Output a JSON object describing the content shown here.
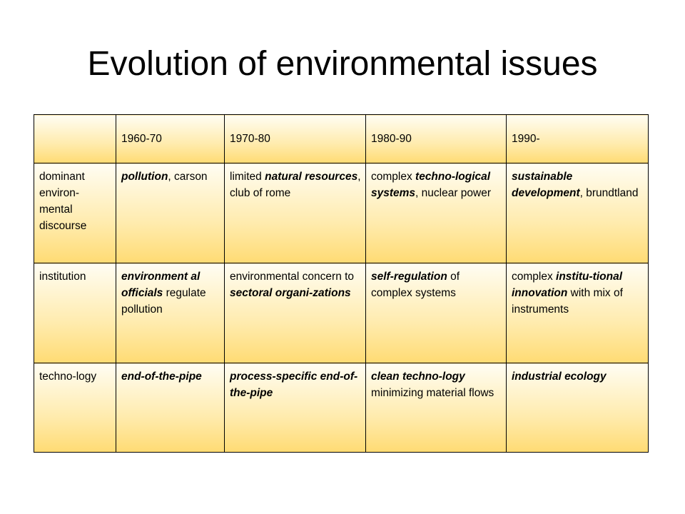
{
  "slide": {
    "title": "Evolution of environmental issues"
  },
  "table": {
    "header": [
      "",
      "1960-70",
      "1970-80",
      "1980-90",
      "1990-"
    ],
    "rows": [
      {
        "label": "dominant environ-mental discourse",
        "cells": [
          [
            {
              "t": "pollution",
              "b": true
            },
            {
              "t": ", carson",
              "b": false
            }
          ],
          [
            {
              "t": "limited ",
              "b": false
            },
            {
              "t": "natural resources",
              "b": true
            },
            {
              "t": ", club of rome",
              "b": false
            }
          ],
          [
            {
              "t": "complex ",
              "b": false
            },
            {
              "t": "techno-logical systems",
              "b": true
            },
            {
              "t": ", nuclear power",
              "b": false
            }
          ],
          [
            {
              "t": "sustainable development",
              "b": true
            },
            {
              "t": ", brundtland",
              "b": false
            }
          ]
        ]
      },
      {
        "label": "institution",
        "cells": [
          [
            {
              "t": "environment al officials",
              "b": true
            },
            {
              "t": " regulate pollution",
              "b": false
            }
          ],
          [
            {
              "t": "environmental concern to ",
              "b": false
            },
            {
              "t": "sectoral organi-zations",
              "b": true
            }
          ],
          [
            {
              "t": "self-regulation",
              "b": true
            },
            {
              "t": " of complex systems",
              "b": false
            }
          ],
          [
            {
              "t": "complex ",
              "b": false
            },
            {
              "t": "institu-tional innovation",
              "b": true
            },
            {
              "t": " with mix of instruments",
              "b": false
            }
          ]
        ]
      },
      {
        "label": "techno-logy",
        "cells": [
          [
            {
              "t": "end-of-the-pipe",
              "b": true
            }
          ],
          [
            {
              "t": "process-specific end-of-the-pipe",
              "b": true
            }
          ],
          [
            {
              "t": "clean techno-logy",
              "b": true
            },
            {
              "t": " minimizing material flows",
              "b": false
            }
          ],
          [
            {
              "t": "industrial ecology",
              "b": true
            }
          ]
        ]
      }
    ]
  }
}
